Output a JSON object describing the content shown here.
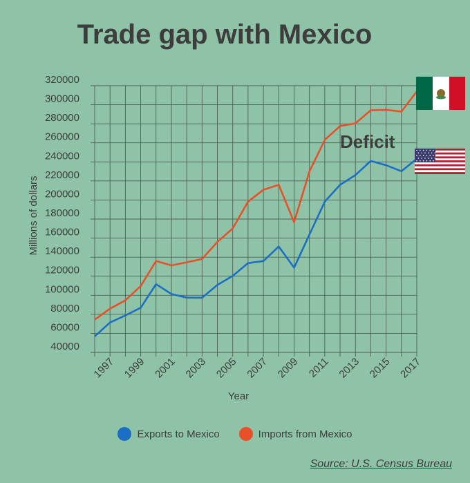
{
  "chart_data": {
    "type": "line",
    "title": "Trade gap with Mexico",
    "xlabel": "Year",
    "ylabel": "Millions of dollars",
    "x": [
      1996,
      1997,
      1998,
      1999,
      2000,
      2001,
      2002,
      2003,
      2004,
      2005,
      2006,
      2007,
      2008,
      2009,
      2010,
      2011,
      2012,
      2013,
      2014,
      2015,
      2016,
      2017
    ],
    "xtick_labels": [
      "1997",
      "1999",
      "2001",
      "2003",
      "2005",
      "2007",
      "2009",
      "2011",
      "2013",
      "2015",
      "2017"
    ],
    "ytick_labels": [
      "320000",
      "300000",
      "280000",
      "260000",
      "240000",
      "220000",
      "200000",
      "180000",
      "160000",
      "140000",
      "120000",
      "100000",
      "80000",
      "60000",
      "40000"
    ],
    "ylim": [
      40000,
      320000
    ],
    "grid": true,
    "legend_position": "bottom",
    "series": [
      {
        "name": "Exports to Mexico",
        "color": "#1a6fc4",
        "values": [
          56800,
          71400,
          78800,
          86900,
          111700,
          101300,
          97500,
          97400,
          110800,
          120400,
          133700,
          135900,
          151200,
          128900,
          163700,
          198300,
          215900,
          226100,
          241000,
          236500,
          230200,
          243300
        ]
      },
      {
        "name": "Imports from Mexico",
        "color": "#e8502a",
        "values": [
          74300,
          85900,
          94600,
          109700,
          135900,
          131300,
          134600,
          138100,
          155900,
          170100,
          198300,
          210700,
          215900,
          176700,
          229900,
          263100,
          277600,
          280500,
          294200,
          294700,
          292800,
          314000
        ]
      }
    ],
    "annotations": [
      {
        "text": "Deficit"
      }
    ]
  },
  "legend": [
    {
      "label": "Exports to Mexico",
      "color": "#1a6fc4"
    },
    {
      "label": "Imports from Mexico",
      "color": "#e8502a"
    }
  ],
  "source": "Source: U.S. Census Bureau",
  "icons": {
    "mexico_flag": "mexico-flag-icon",
    "us_flag": "us-flag-icon"
  }
}
